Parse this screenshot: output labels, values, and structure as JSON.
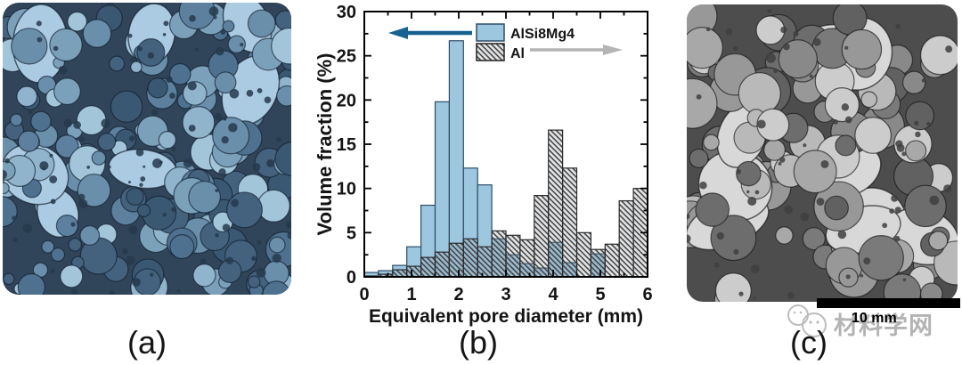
{
  "panels": {
    "a": {
      "label": "(a)",
      "description": "3D tomographic rendering of AlSi8Mg4 metal foam cross-section, blue tones",
      "base_color": "#31455a",
      "highlight_color": "#abcbe2"
    },
    "b": {
      "label": "(b)",
      "description": "Histogram of pore size distributions"
    },
    "c": {
      "label": "(c)",
      "description": "3D tomographic rendering of Al metal foam cross-section, gray tones",
      "base_color": "#4d4d4d",
      "highlight_color": "#d8d8d8"
    }
  },
  "watermark": {
    "text": "材料学网",
    "icon": "chat-bubbles-icon",
    "color": "#b3b3b3"
  },
  "scalebar": {
    "label": "10 mm",
    "color": "#000000"
  },
  "chart_data": {
    "type": "bar",
    "title": "",
    "xlabel": "Equivalent pore diameter (mm)",
    "ylabel": "Volume fraction (%)",
    "xlim": [
      0,
      6
    ],
    "ylim": [
      0,
      30
    ],
    "x_ticks": [
      0,
      1,
      2,
      3,
      4,
      5,
      6
    ],
    "x_minor_step": 0.5,
    "y_ticks": [
      0,
      5,
      10,
      15,
      20,
      25,
      30
    ],
    "y_minor_step": 2.5,
    "grid": false,
    "tick_style": "inward-all-sides",
    "axis_color": "#000000",
    "legend_position": "top-center-inside",
    "bins": {
      "start": 0,
      "width": 0.3,
      "count": 20
    },
    "series": [
      {
        "name": "AlSi8Mg4",
        "style": "solid",
        "fill": "#9dc6df",
        "edge": "#2e4d66",
        "values": [
          0.5,
          0.7,
          1.3,
          3.4,
          8.1,
          19.8,
          26.7,
          12.3,
          10.4,
          4.3,
          2.5,
          1.5,
          1.0,
          3.9,
          1.6,
          0,
          2.6,
          0,
          0,
          0
        ]
      },
      {
        "name": "Al",
        "style": "hatched-diagonal",
        "fill": "#e8eaec",
        "hatch_color": "#3d3d3d",
        "edge": "#2b2b2b",
        "values": [
          0.1,
          0.3,
          0.8,
          1.2,
          2.2,
          2.8,
          3.8,
          4.3,
          3.4,
          5.2,
          4.7,
          4.2,
          9.2,
          16.6,
          12.3,
          5.0,
          3.1,
          3.7,
          8.6,
          10.0
        ]
      }
    ],
    "annotations": [
      {
        "type": "arrow",
        "points": "left",
        "color": "#16618f",
        "refers_to": "AlSi8Mg4"
      },
      {
        "type": "arrow",
        "points": "right",
        "color": "#b4b4b4",
        "refers_to": "Al"
      }
    ]
  }
}
